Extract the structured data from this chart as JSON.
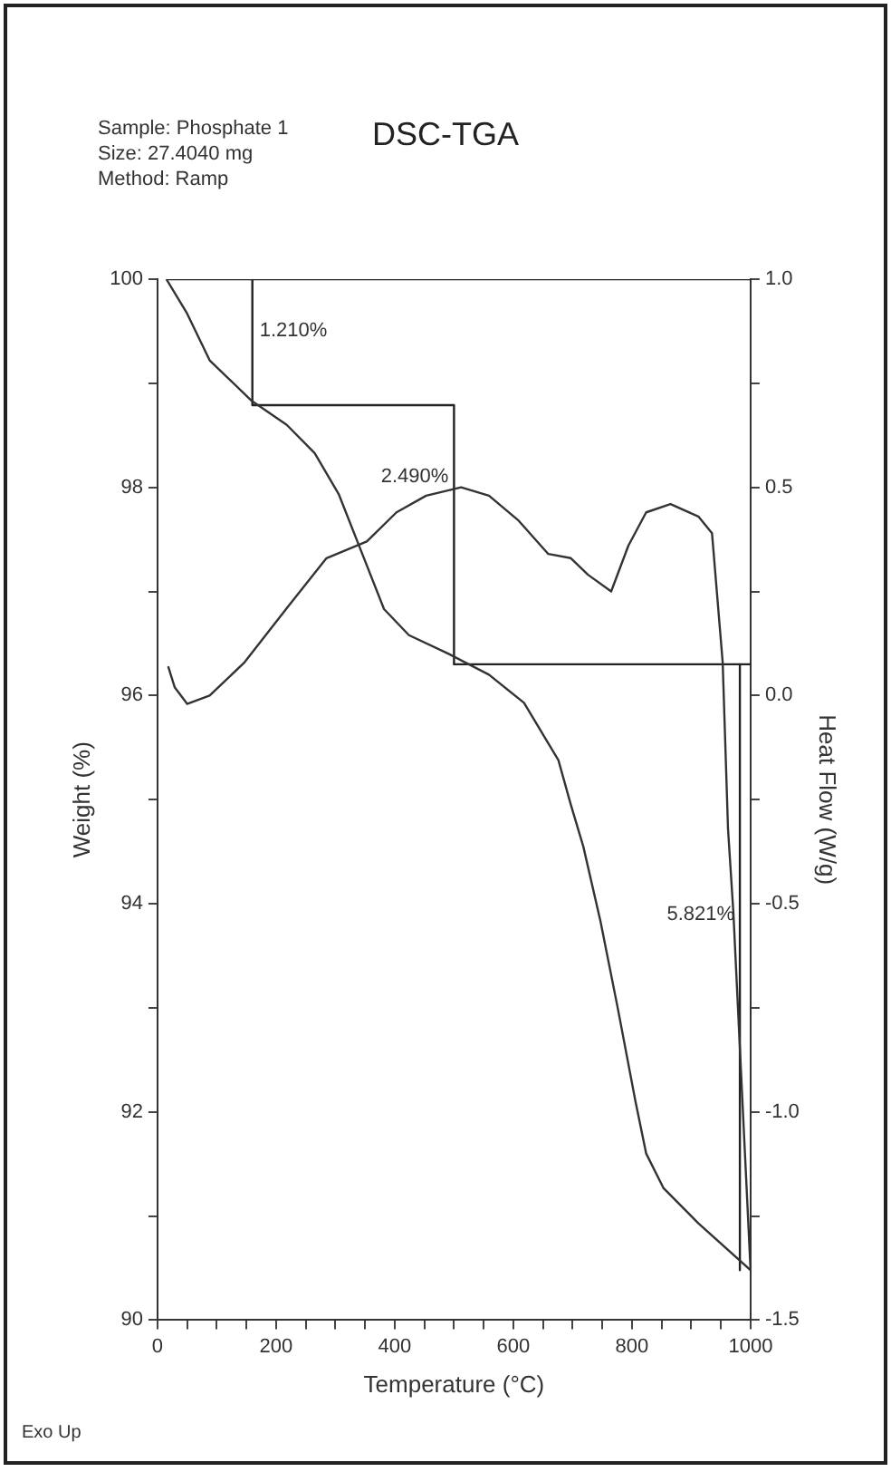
{
  "chart_data": {
    "type": "line",
    "title": "DSC-TGA",
    "xlabel": "Temperature (°C)",
    "ylabel": "Weight (%)",
    "y2label": "Heat Flow (W/g)",
    "xlim": [
      0,
      1000
    ],
    "xticks": [
      0,
      {
        "value": 50,
        "label": null
      },
      {
        "value": 100,
        "label": null
      },
      {
        "value": 150,
        "label": null
      },
      200,
      {
        "value": 250,
        "label": null
      },
      {
        "value": 300,
        "label": null
      },
      {
        "value": 350,
        "label": null
      },
      400,
      {
        "value": 450,
        "label": null
      },
      {
        "value": 500,
        "label": null
      },
      {
        "value": 550,
        "label": null
      },
      600,
      {
        "value": 650,
        "label": null
      },
      {
        "value": 700,
        "label": null
      },
      {
        "value": 750,
        "label": null
      },
      800,
      {
        "value": 850,
        "label": null
      },
      {
        "value": 900,
        "label": null
      },
      {
        "value": 950,
        "label": null
      },
      1000
    ],
    "ylim": [
      90,
      100
    ],
    "yticks": [
      90,
      {
        "value": 91,
        "label": null
      },
      92,
      {
        "value": 93,
        "label": null
      },
      94,
      {
        "value": 95,
        "label": null
      },
      96,
      {
        "value": 97,
        "label": null
      },
      98,
      {
        "value": 99,
        "label": null
      },
      100
    ],
    "y2lim": [
      -1.5,
      1.0
    ],
    "y2ticks": [
      {
        "value": -1.5,
        "label": "-1.5"
      },
      {
        "value": -1.25,
        "label": null
      },
      {
        "value": -1.0,
        "label": "-1.0"
      },
      {
        "value": -0.75,
        "label": null
      },
      {
        "value": -0.5,
        "label": "-0.5"
      },
      {
        "value": -0.25,
        "label": null
      },
      {
        "value": 0,
        "label": "0.0"
      },
      {
        "value": 0.25,
        "label": null
      },
      {
        "value": 0.5,
        "label": "0.5"
      },
      {
        "value": 0.75,
        "label": null
      },
      {
        "value": 1.0,
        "label": "1.0"
      }
    ],
    "series": [
      {
        "color": "#333333",
        "x": [
          15,
          50,
          88,
          159,
          218,
          265,
          306,
          344,
          382,
          424,
          491,
          559,
          618,
          676,
          697,
          718,
          747,
          776,
          806,
          824,
          853,
          912,
          1000
        ],
        "values": [
          100,
          99.67,
          99.22,
          98.83,
          98.6,
          98.33,
          97.93,
          97.38,
          96.83,
          96.58,
          96.4,
          96.2,
          95.93,
          95.38,
          94.95,
          94.55,
          93.83,
          93.0,
          92.1,
          91.6,
          91.27,
          90.93,
          90.48
        ]
      },
      {
        "color": "#333333",
        "axis": "y2",
        "x": [
          18,
          29,
          50,
          88,
          147,
          218,
          285,
          353,
          403,
          453,
          512,
          559,
          609,
          659,
          697,
          726,
          765,
          794,
          824,
          865,
          912,
          935,
          953,
          962,
          971,
          1000
        ],
        "values": [
          0.07,
          0.02,
          -0.02,
          0.0,
          0.08,
          0.21,
          0.33,
          0.37,
          0.44,
          0.48,
          0.5,
          0.48,
          0.42,
          0.34,
          0.33,
          0.29,
          0.25,
          0.36,
          0.44,
          0.46,
          0.43,
          0.39,
          0.08,
          -0.32,
          -0.52,
          -1.38
        ]
      },
      {
        "color": "#222222",
        "x": [
          15,
          1000
        ],
        "values": [
          100,
          100
        ]
      },
      {
        "color": "#222222",
        "x": [
          160,
          500
        ],
        "values": [
          98.79,
          98.79
        ]
      },
      {
        "color": "#222222",
        "x": [
          500,
          1000
        ],
        "values": [
          96.3,
          96.3
        ]
      },
      {
        "color": "#222222",
        "x": [
          160,
          160
        ],
        "values": [
          100,
          98.79
        ]
      },
      {
        "color": "#222222",
        "x": [
          500,
          500
        ],
        "values": [
          98.79,
          96.3
        ]
      },
      {
        "color": "#222222",
        "x": [
          982,
          982
        ],
        "values": [
          96.3,
          90.48
        ]
      }
    ],
    "annotations": [
      "Sample: Phosphate 1",
      "Size:  27.4040 mg",
      "Method: Ramp",
      {
        "text": "1.210%",
        "x": 160,
        "y": 99.5
      },
      {
        "text": "2.490%",
        "x": 500,
        "y": 98.1
      },
      {
        "text": "5.821%",
        "x": 982,
        "y": 93.9
      },
      "Exo Up"
    ]
  }
}
